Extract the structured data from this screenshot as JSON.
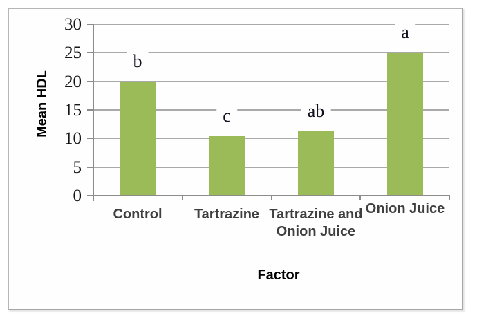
{
  "frame": {
    "border_color": "#b6b6b6",
    "background": "#fefefe"
  },
  "chart_data": {
    "type": "bar",
    "title": "",
    "categories": [
      "Control",
      "Tartrazine",
      "Tartrazine and Onion Juice",
      "Onion Juice"
    ],
    "category_display_lines": [
      [
        "Control"
      ],
      [
        "Tartrazine"
      ],
      [
        "Tartrazine and",
        "Onion Juice"
      ],
      [
        "Onion Juice"
      ]
    ],
    "values": [
      20,
      10.4,
      11.3,
      25
    ],
    "significance_letters": [
      "b",
      "c",
      "ab",
      "a"
    ],
    "xlabel": "Factor",
    "ylabel": "Mean HDL",
    "ylim": [
      0,
      30
    ],
    "yticks": [
      0,
      5,
      10,
      15,
      20,
      25,
      30
    ],
    "grid": true,
    "legend": false,
    "colors": {
      "bar": "#9bbb59",
      "gridline": "#a9a9a9",
      "axis": "#8c8c8c",
      "tick_label": "#161616",
      "category_label": "#3f3f3f",
      "axis_title": "#1a1a1a",
      "letter": "#10101e"
    }
  }
}
